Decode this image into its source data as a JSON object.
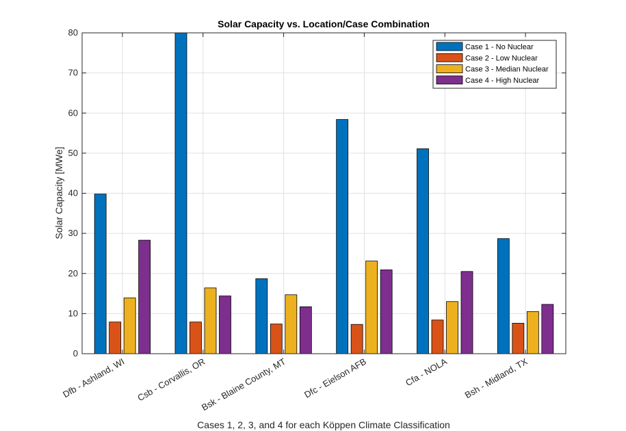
{
  "chart_data": {
    "type": "bar",
    "title": "Solar Capacity vs. Location/Case Combination",
    "xlabel": "Cases 1, 2, 3, and 4 for each Köppen Climate Classification",
    "ylabel": "Solar Capacity [MWe]",
    "ylim": [
      0,
      80
    ],
    "yticks": [
      0,
      10,
      20,
      30,
      40,
      50,
      60,
      70,
      80
    ],
    "grid": true,
    "legend_placement": "top-right",
    "categories": [
      "Dfb - Ashland, WI",
      "Csb - Corvallis, OR",
      "Bsk - Blaine County, MT",
      "Dfc - Eielson AFB",
      "Cfa - NOLA",
      "Bsh - Midland, TX"
    ],
    "series": [
      {
        "name": "Case 1 - No Nuclear",
        "color": "#0072BD",
        "values": [
          39.8,
          80,
          18.7,
          58.4,
          51.1,
          28.7
        ]
      },
      {
        "name": "Case 2 - Low Nuclear",
        "color": "#D95319",
        "values": [
          7.9,
          7.9,
          7.4,
          7.3,
          8.4,
          7.6
        ]
      },
      {
        "name": "Case 3 - Median Nuclear",
        "color": "#EDB120",
        "values": [
          13.9,
          16.4,
          14.7,
          23.1,
          13.0,
          10.5
        ]
      },
      {
        "name": "Case 4 - High Nuclear",
        "color": "#7E2F8E",
        "values": [
          28.3,
          14.4,
          11.7,
          20.9,
          20.5,
          12.3
        ]
      }
    ]
  }
}
